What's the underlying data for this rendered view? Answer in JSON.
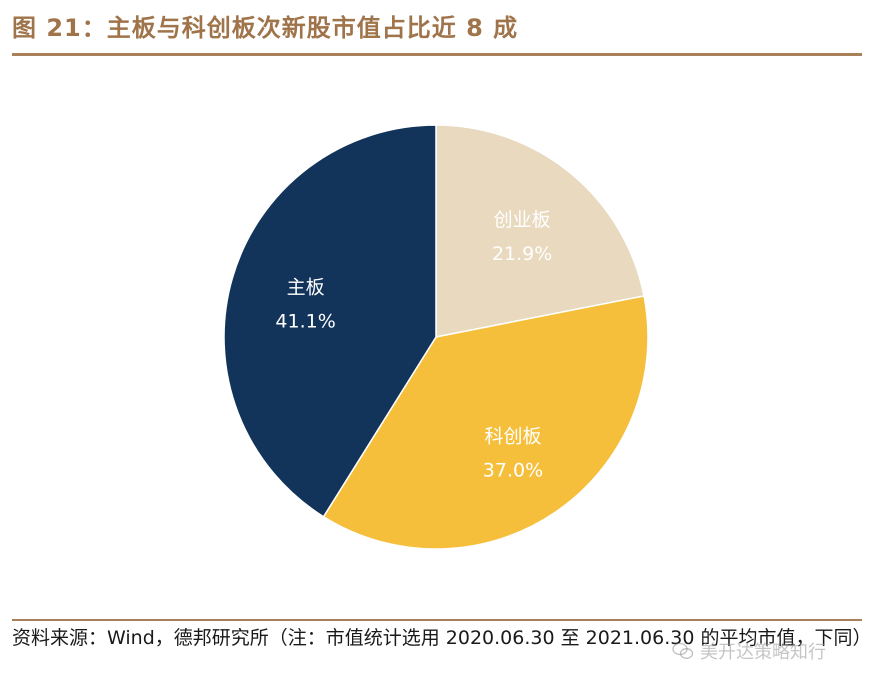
{
  "figure": {
    "title": "图 21：主板与科创板次新股市值占比近 8 成"
  },
  "chart_data": {
    "type": "pie",
    "start_angle_deg": 0,
    "direction": "clockwise",
    "slices": [
      {
        "label": "创业板",
        "value": 21.9,
        "display": "21.9%",
        "color": "#e8d9bf"
      },
      {
        "label": "科创板",
        "value": 37.0,
        "display": "37.0%",
        "color": "#f5bf3c"
      },
      {
        "label": "主板",
        "value": 41.1,
        "display": "41.1%",
        "color": "#12345a"
      }
    ],
    "label_color": "#ffffff",
    "legend": "none"
  },
  "source": {
    "text": "资料来源：Wind，德邦研究所（注：市值统计选用 2020.06.30 至 2021.06.30 的平均市值，下同）"
  },
  "watermark": {
    "text": "美开达策略知行",
    "icon": "wechat-icon"
  },
  "colors": {
    "accent": "#a0744a",
    "rule": "#a8805a"
  }
}
